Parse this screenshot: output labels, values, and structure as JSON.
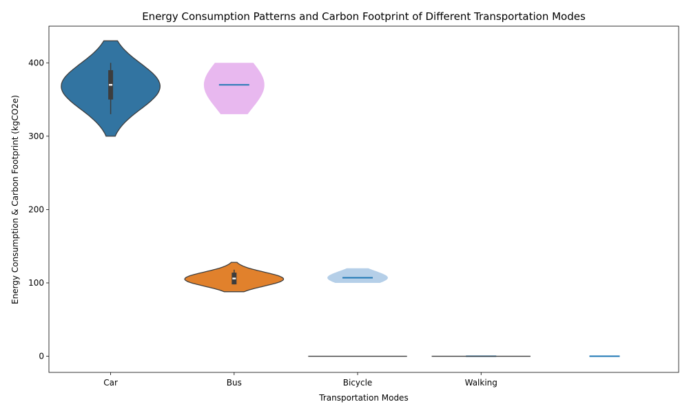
{
  "chart_data": {
    "type": "violin",
    "title": "Energy Consumption Patterns and Carbon Footprint of Different Transportation Modes",
    "xlabel": "Transportation Modes",
    "ylabel": "Energy Consumption & Carbon Footprint (kgCO2e)",
    "ylim": [
      -22,
      450
    ],
    "yticks": [
      0,
      100,
      200,
      300,
      400
    ],
    "xlim": [
      -0.5,
      4.6
    ],
    "categories": [
      "Car",
      "Bus",
      "Bicycle",
      "Walking"
    ],
    "colors": {
      "blue": "#3274a1",
      "orange": "#e1812c",
      "pink": "#e8b8ef",
      "lightblue": "#b5cfe8",
      "median_blue": "#1f77b4",
      "outline": "#3d3d3d"
    },
    "violins": [
      {
        "category": "Car",
        "x": 0,
        "data_min": 330,
        "q1": 350,
        "median": 370,
        "q3": 390,
        "data_max": 400,
        "cut_min": 300,
        "cut_max": 430,
        "style": "seaborn",
        "color": "blue"
      },
      {
        "category": "Bus",
        "x": 1,
        "data_min": 98,
        "q1": 98,
        "median": 106,
        "q3": 114,
        "data_max": 118,
        "cut_min": 88,
        "cut_max": 128,
        "style": "seaborn",
        "color": "orange"
      },
      {
        "category": "Bicycle",
        "x": 2,
        "data_min": 0,
        "median": 0,
        "data_max": 0,
        "style": "flat",
        "color": "outline"
      },
      {
        "category": "Walking",
        "x": 3,
        "data_min": 0,
        "median": 0,
        "data_max": 0,
        "style": "flat",
        "color": "outline"
      }
    ],
    "extra_violins": [
      {
        "x": 1,
        "data_min": 330,
        "median": 370,
        "data_max": 400,
        "style": "matplotlib",
        "color": "pink"
      },
      {
        "x": 2,
        "data_min": 100,
        "median": 107,
        "data_max": 120,
        "style": "matplotlib",
        "color": "lightblue"
      },
      {
        "x": 3,
        "data_min": 0,
        "median": 0,
        "data_max": 0,
        "style": "matplotlib",
        "color": "median_blue"
      },
      {
        "x": 4,
        "data_min": 0,
        "median": 0,
        "data_max": 0,
        "style": "matplotlib",
        "color": "median_blue"
      }
    ]
  }
}
